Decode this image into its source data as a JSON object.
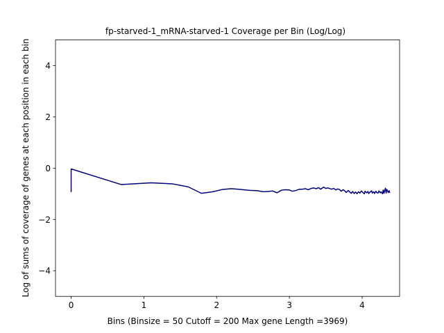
{
  "chart_data": {
    "type": "line",
    "title": "fp-starved-1_mRNA-starved-1 Coverage per Bin (Log/Log)",
    "xlabel": "Bins  (Binsize = 50 Cutoff = 200 Max gene Length =3969)",
    "ylabel": "Log of sums of coverage of genes at each position in each bin",
    "xlim": [
      -0.215,
      4.515
    ],
    "ylim": [
      -5,
      5
    ],
    "xticks": [
      "0",
      "1",
      "2",
      "3",
      "4"
    ],
    "yticks": [
      "−4",
      "−2",
      "0",
      "2",
      "4"
    ],
    "xtick_values": [
      0,
      1,
      2,
      3,
      4
    ],
    "ytick_values": [
      -4,
      -2,
      0,
      2,
      4
    ],
    "grid": false,
    "color": "#000080",
    "series": [
      {
        "x": [
          0,
          0,
          0.69,
          1.1,
          1.39,
          1.61,
          1.79,
          1.95,
          2.08,
          2.2,
          2.3,
          2.4,
          2.48,
          2.56,
          2.64,
          2.71,
          2.77,
          2.83,
          2.89,
          2.94,
          3.0,
          3.04,
          3.09,
          3.14,
          3.18,
          3.22,
          3.26,
          3.3,
          3.33,
          3.37,
          3.4,
          3.43,
          3.47,
          3.5,
          3.53,
          3.56,
          3.58,
          3.61,
          3.64,
          3.66,
          3.69,
          3.71,
          3.74,
          3.76,
          3.78,
          3.81,
          3.83,
          3.85,
          3.87,
          3.89,
          3.91,
          3.93,
          3.95,
          3.97,
          3.99,
          4.01,
          4.03,
          4.04,
          4.06,
          4.08,
          4.09,
          4.11,
          4.13,
          4.14,
          4.16,
          4.17,
          4.19,
          4.2,
          4.22,
          4.23,
          4.25,
          4.26,
          4.28,
          4.29,
          4.3,
          4.32,
          4.33,
          4.34,
          4.36,
          4.37,
          4.38
        ],
        "y": [
          -0.93,
          -0.03,
          -0.64,
          -0.57,
          -0.61,
          -0.73,
          -0.98,
          -0.92,
          -0.83,
          -0.8,
          -0.82,
          -0.85,
          -0.87,
          -0.88,
          -0.92,
          -0.91,
          -0.89,
          -0.96,
          -0.86,
          -0.84,
          -0.85,
          -0.9,
          -0.87,
          -0.82,
          -0.82,
          -0.8,
          -0.84,
          -0.79,
          -0.77,
          -0.8,
          -0.76,
          -0.82,
          -0.74,
          -0.79,
          -0.77,
          -0.8,
          -0.82,
          -0.79,
          -0.85,
          -0.81,
          -0.83,
          -0.9,
          -0.84,
          -0.88,
          -0.95,
          -0.87,
          -0.93,
          -0.98,
          -0.91,
          -0.99,
          -0.93,
          -1.0,
          -0.92,
          -0.97,
          -0.89,
          -0.95,
          -1.0,
          -0.9,
          -0.96,
          -0.91,
          -0.99,
          -0.93,
          -0.88,
          -0.97,
          -0.92,
          -0.99,
          -0.9,
          -0.95,
          -0.97,
          -0.89,
          -0.96,
          -0.92,
          -1.0,
          -0.85,
          -0.98,
          -0.78,
          -0.97,
          -0.83,
          -0.95,
          -0.88,
          -0.96
        ]
      }
    ]
  }
}
